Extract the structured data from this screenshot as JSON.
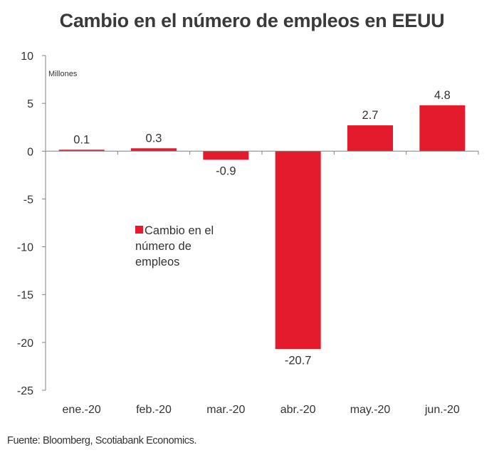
{
  "chart_data": {
    "type": "bar",
    "title": "Cambio en el número de empleos en EEUU",
    "ylabel": "Millones",
    "xlabel": "",
    "categories": [
      "ene.-20",
      "feb.-20",
      "mar.-20",
      "abr.-20",
      "may.-20",
      "jun.-20"
    ],
    "series": [
      {
        "name": "Cambio en el número de empleos",
        "color": "#e31b2c",
        "values": [
          0.1,
          0.3,
          -0.9,
          -20.7,
          2.7,
          4.8
        ]
      }
    ],
    "data_labels": [
      "0.1",
      "0.3",
      "-0.9",
      "-20.7",
      "2.7",
      "4.8"
    ],
    "ylim": [
      -25,
      10
    ],
    "yticks": [
      10,
      5,
      0,
      -5,
      -10,
      -15,
      -20,
      -25
    ],
    "grid": false,
    "legend": {
      "lines": [
        "Cambio en el",
        "número de",
        "empleos"
      ]
    }
  },
  "source": "Fuente: Bloomberg, Scotiabank Economics."
}
